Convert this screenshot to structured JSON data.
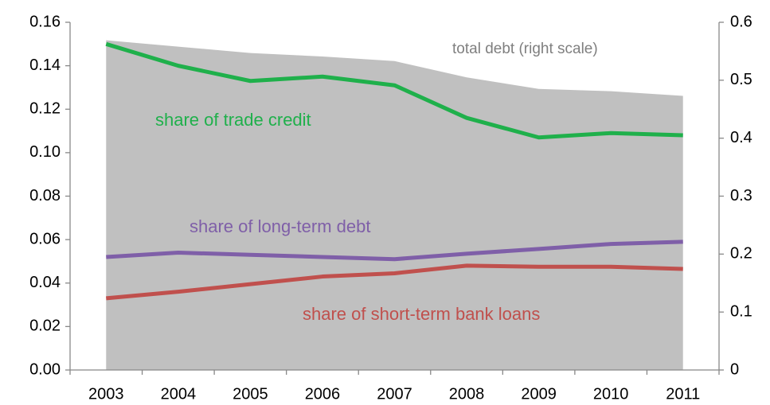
{
  "chart_data": {
    "type": "line",
    "categories": [
      "2003",
      "2004",
      "2005",
      "2006",
      "2007",
      "2008",
      "2009",
      "2010",
      "2011"
    ],
    "series": [
      {
        "name": "total debt (right scale)",
        "type": "area",
        "axis": "y2",
        "color": "#c0c0c0",
        "values": [
          0.569,
          0.558,
          0.547,
          0.541,
          0.533,
          0.505,
          0.485,
          0.481,
          0.473
        ]
      },
      {
        "name": "share of trade credit",
        "color": "#1fb04b",
        "values": [
          0.15,
          0.14,
          0.133,
          0.135,
          0.131,
          0.116,
          0.107,
          0.109,
          0.108
        ]
      },
      {
        "name": "share of long-term debt",
        "color": "#7f5fa8",
        "values": [
          0.052,
          0.054,
          0.053,
          0.052,
          0.051,
          0.0535,
          0.0557,
          0.058,
          0.059
        ]
      },
      {
        "name": "share of short-term bank loans",
        "color": "#c0504d",
        "values": [
          0.033,
          0.036,
          0.0395,
          0.043,
          0.0445,
          0.048,
          0.0475,
          0.0475,
          0.0465
        ]
      }
    ],
    "ylim": [
      0,
      0.16
    ],
    "yticks": [
      {
        "value": 0,
        "label": "0.00"
      },
      {
        "value": 0.02,
        "label": "0.02"
      },
      {
        "value": 0.04,
        "label": "0.04"
      },
      {
        "value": 0.06,
        "label": "0.06"
      },
      {
        "value": 0.08,
        "label": "0.08"
      },
      {
        "value": 0.1,
        "label": "0.10"
      },
      {
        "value": 0.12,
        "label": "0.12"
      },
      {
        "value": 0.14,
        "label": "0.14"
      },
      {
        "value": 0.16,
        "label": "0.16"
      }
    ],
    "y2lim": [
      0,
      0.6
    ],
    "y2ticks": [
      0,
      0.1,
      0.2,
      0.3,
      0.4,
      0.5,
      0.6
    ]
  }
}
